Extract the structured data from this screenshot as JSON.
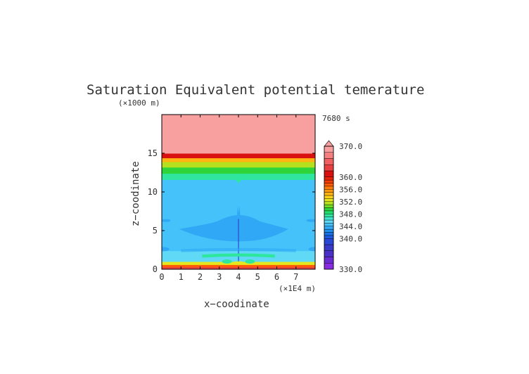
{
  "chart_data": {
    "type": "heatmap",
    "title": "Saturation Equivalent potential temerature",
    "xlabel": "x−coodinate",
    "ylabel": "z−coodinate",
    "x_unit": "(×1E4 m)",
    "y_unit": "(×1000 m)",
    "time_label": "7680 s",
    "xlim": [
      0,
      8
    ],
    "ylim": [
      0,
      20
    ],
    "x_ticks": [
      0,
      1,
      2,
      3,
      4,
      5,
      6,
      7
    ],
    "y_ticks": [
      0,
      5,
      10,
      15
    ],
    "colorbar": {
      "min": 330,
      "max": 370,
      "labels": [
        "370.0",
        "360.0",
        "356.0",
        "352.0",
        "348.0",
        "344.0",
        "340.0",
        "330.0"
      ],
      "label_values": [
        370,
        360,
        356,
        352,
        348,
        344,
        340,
        330
      ],
      "levels": [
        330,
        332,
        334,
        336,
        338,
        340,
        341,
        342,
        343,
        344,
        345,
        346,
        347,
        348,
        349,
        350,
        351,
        352,
        353,
        354,
        355,
        356,
        357,
        358,
        359,
        360,
        362,
        364,
        366,
        368,
        370
      ],
      "colors": [
        "#8a2be2",
        "#6a2bd0",
        "#4b30c8",
        "#3a3ac8",
        "#2a48d6",
        "#1e5ae0",
        "#1a72ea",
        "#2090f0",
        "#30a8f6",
        "#46c2fa",
        "#5fd9f5",
        "#3fe6d2",
        "#2ee69e",
        "#22dd6a",
        "#2ed43a",
        "#70dc24",
        "#b4e01e",
        "#e6e61e",
        "#ffd21a",
        "#ffb414",
        "#ff9610",
        "#ff780c",
        "#ff5a08",
        "#f53c08",
        "#e62208",
        "#d81010",
        "#e84040",
        "#f06060",
        "#f58080",
        "#f8a0a0"
      ],
      "over_color": "#f8a0a0"
    },
    "bands": [
      {
        "z": [
          0,
          0.3
        ],
        "value": 362
      },
      {
        "z": [
          0.3,
          0.6
        ],
        "value": 357
      },
      {
        "z": [
          0.6,
          1.0
        ],
        "value": 352.5
      },
      {
        "z": [
          1.0,
          2.4
        ],
        "value": 345.5
      },
      {
        "z": [
          2.4,
          11.6
        ],
        "value": 344.5
      },
      {
        "z": [
          11.6,
          12.4
        ],
        "value": 347.5
      },
      {
        "z": [
          12.4,
          13.2
        ],
        "value": 349.5
      },
      {
        "z": [
          13.2,
          13.9
        ],
        "value": 351.5
      },
      {
        "z": [
          13.9,
          14.4
        ],
        "value": 354
      },
      {
        "z": [
          14.4,
          15.0
        ],
        "value": 360
      },
      {
        "z": [
          15.0,
          20
        ],
        "value": 368
      }
    ],
    "features": [
      {
        "name": "mid-level low-theta region",
        "value": 343.5,
        "x": [
          2.6,
          4.0,
          5.5,
          3.4,
          4.6
        ],
        "z": [
          4.0,
          5.8,
          4.6,
          4.8,
          6.5
        ]
      },
      {
        "name": "central plume",
        "value": 343.5,
        "x": [
          4.0
        ],
        "z": [
          8.0
        ]
      },
      {
        "name": "lower low-theta band",
        "value": 343.5,
        "x": [
          1.0,
          4.0,
          7.0
        ],
        "z": [
          1.6,
          2.2,
          1.6
        ]
      },
      {
        "name": "near-surface green arc",
        "value": 347.5,
        "x": [
          3.2,
          4.0,
          4.8
        ],
        "z": [
          0.9,
          1.8,
          0.9
        ]
      },
      {
        "name": "upper green dip",
        "value": 347.5,
        "x": [
          4.0
        ],
        "z": [
          11.3
        ]
      }
    ]
  }
}
